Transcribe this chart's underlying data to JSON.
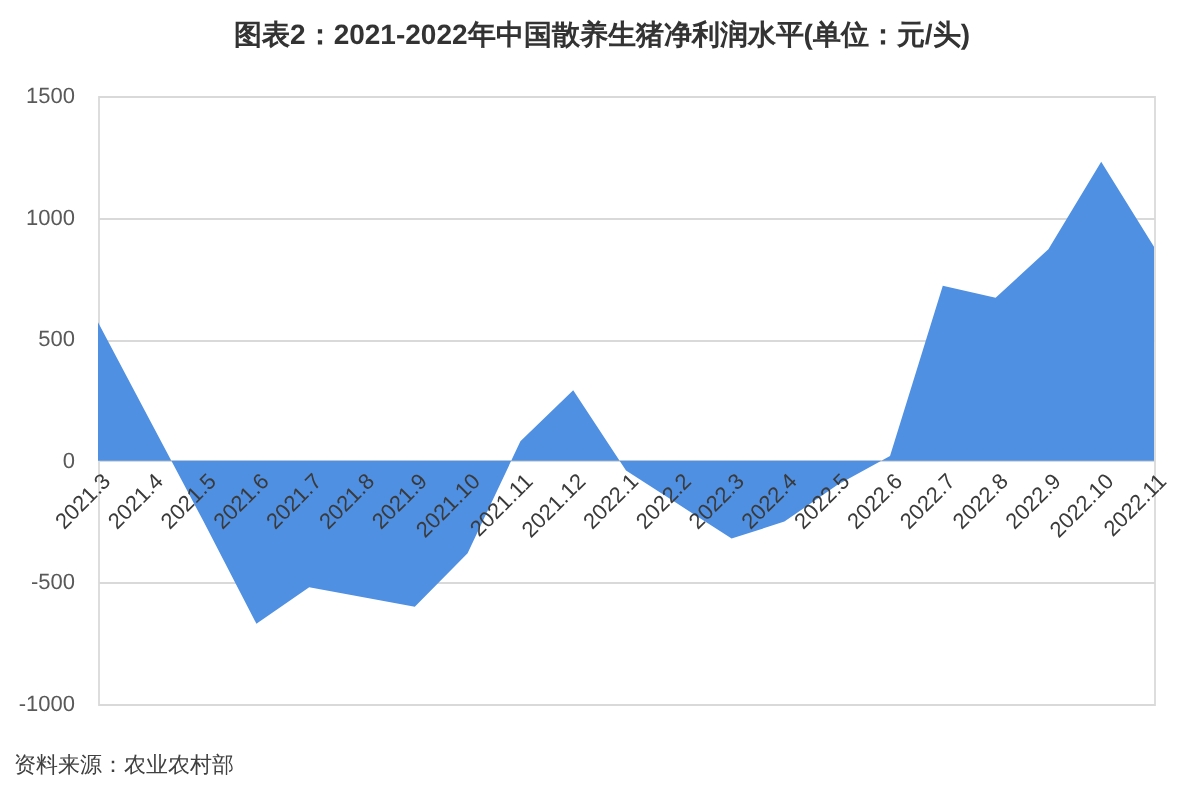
{
  "chart_data": {
    "type": "area",
    "title": "图表2：2021-2022年中国散养生猪净利润水平(单位：元/头)",
    "categories": [
      "2021.3",
      "2021.4",
      "2021.5",
      "2021.6",
      "2021.7",
      "2021.8",
      "2021.9",
      "2021.10",
      "2021.11",
      "2021.12",
      "2022.1",
      "2022.2",
      "2022.3",
      "2022.4",
      "2022.5",
      "2022.6",
      "2022.7",
      "2022.8",
      "2022.9",
      "2022.10",
      "2022.11"
    ],
    "values": [
      570,
      160,
      -250,
      -670,
      -520,
      -560,
      -600,
      -380,
      80,
      290,
      -40,
      -180,
      -320,
      -250,
      -100,
      20,
      720,
      670,
      870,
      1230,
      880
    ],
    "color": "#4f90e2",
    "ylim": [
      -1000,
      1500
    ],
    "yticks": [
      -1000,
      -500,
      0,
      500,
      1000,
      1500
    ],
    "grid": "y",
    "annotations": [
      "资料来源：农业农村部"
    ]
  }
}
